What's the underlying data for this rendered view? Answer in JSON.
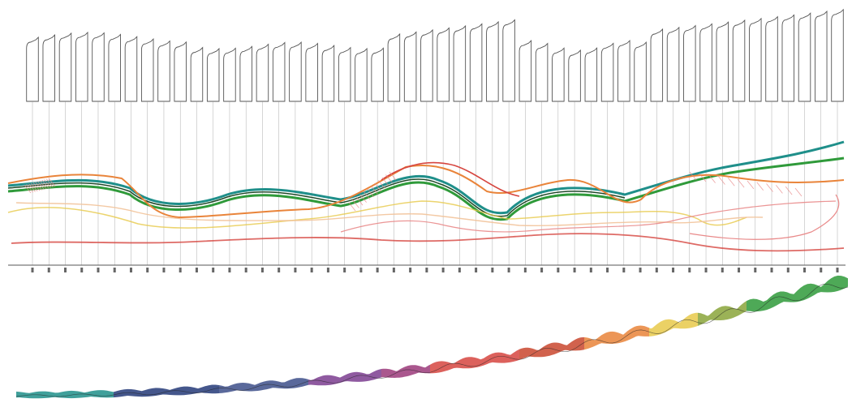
{
  "diagram": {
    "kind": "architectural-sectional-and-curve-study",
    "section_count": 50,
    "palette": {
      "teal": "#1f8f8a",
      "green": "#2f9a3a",
      "dark_green": "#1f4a2a",
      "yellow": "#e7c94a",
      "orange": "#e9843a",
      "red": "#d6453f",
      "pink": "#e98a8a",
      "peach": "#f2c39a",
      "purple": "#7b3d8f",
      "navy": "#243a78",
      "line_gray": "#8c8c8c",
      "outline": "#555555"
    },
    "note": ""
  }
}
